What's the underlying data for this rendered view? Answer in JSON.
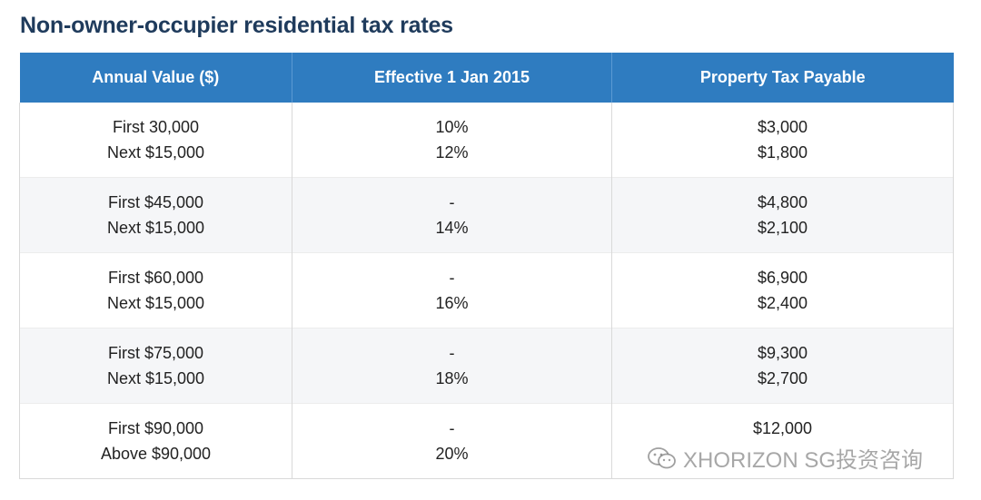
{
  "page": {
    "title": "Non-owner-occupier residential tax rates"
  },
  "table": {
    "headers": [
      "Annual Value ($)",
      "Effective 1 Jan 2015",
      "Property Tax Payable"
    ],
    "rows": [
      {
        "annual_value": [
          "First 30,000",
          "Next $15,000"
        ],
        "effective": [
          "10%",
          "12%"
        ],
        "payable": [
          "$3,000",
          "$1,800"
        ]
      },
      {
        "annual_value": [
          "First $45,000",
          "Next $15,000"
        ],
        "effective": [
          "-",
          "14%"
        ],
        "payable": [
          "$4,800",
          "$2,100"
        ]
      },
      {
        "annual_value": [
          "First $60,000",
          "Next $15,000"
        ],
        "effective": [
          "-",
          "16%"
        ],
        "payable": [
          "$6,900",
          "$2,400"
        ]
      },
      {
        "annual_value": [
          "First $75,000",
          "Next $15,000"
        ],
        "effective": [
          "-",
          "18%"
        ],
        "payable": [
          "$9,300",
          "$2,700"
        ]
      },
      {
        "annual_value": [
          "First $90,000",
          "Above $90,000"
        ],
        "effective": [
          "-",
          "20%"
        ],
        "payable": [
          "$12,000",
          ""
        ]
      }
    ]
  },
  "watermark": {
    "icon": "wechat-icon",
    "text": "XHORIZON SG投资咨询"
  },
  "colors": {
    "header_bg": "#2f7cc0",
    "title": "#1f3b5c",
    "alt_row": "#f5f6f8"
  }
}
